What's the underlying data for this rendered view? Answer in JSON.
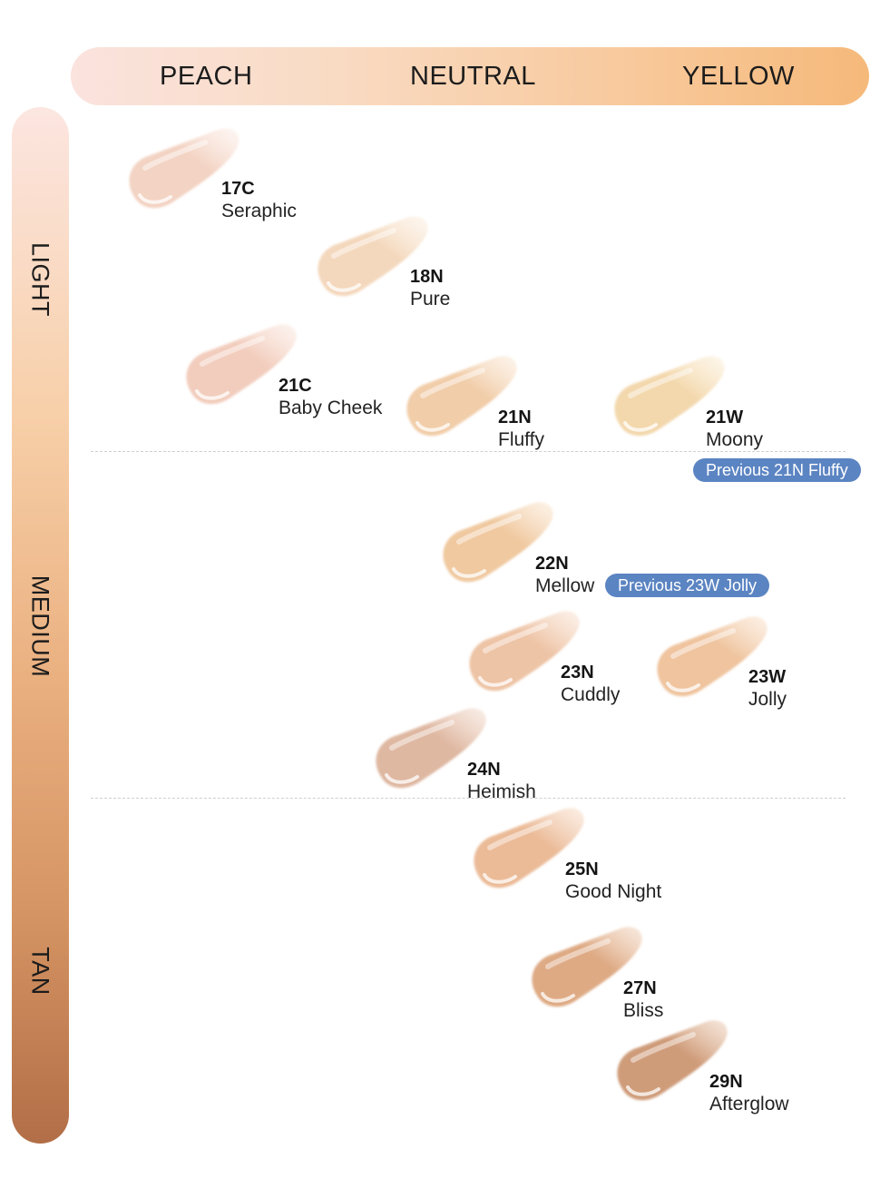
{
  "undertones": [
    "PEACH",
    "NEUTRAL",
    "YELLOW"
  ],
  "depths": [
    "LIGHT",
    "MEDIUM",
    "TAN"
  ],
  "shades": [
    {
      "code": "17C",
      "name": "Seraphic",
      "color": "#f3d3c3",
      "highlight": "#fbeae1"
    },
    {
      "code": "18N",
      "name": "Pure",
      "color": "#f4d8bd",
      "highlight": "#fbeddd"
    },
    {
      "code": "21C",
      "name": "Baby Cheek",
      "color": "#f2cdbd",
      "highlight": "#fae4da"
    },
    {
      "code": "21N",
      "name": "Fluffy",
      "color": "#f1cda9",
      "highlight": "#fae4cf"
    },
    {
      "code": "21W",
      "name": "Moony",
      "color": "#f3d8ad",
      "highlight": "#fbebd0"
    },
    {
      "code": "22N",
      "name": "Mellow",
      "color": "#f0c9a0",
      "highlight": "#f9e0c6"
    },
    {
      "code": "23N",
      "name": "Cuddly",
      "color": "#eec4a6",
      "highlight": "#f8ddca"
    },
    {
      "code": "23W",
      "name": "Jolly",
      "color": "#efc49e",
      "highlight": "#f9dcc3"
    },
    {
      "code": "24N",
      "name": "Heimish",
      "color": "#dfb8a2",
      "highlight": "#f0d5c5"
    },
    {
      "code": "25N",
      "name": "Good Night",
      "color": "#ebbb98",
      "highlight": "#f6d6bf"
    },
    {
      "code": "27N",
      "name": "Bliss",
      "color": "#deaa84",
      "highlight": "#efcbb0"
    },
    {
      "code": "29N",
      "name": "Afterglow",
      "color": "#cf9c7a",
      "highlight": "#e8c2a7"
    }
  ],
  "badges": [
    "Previous 21N Fluffy",
    "Previous 23W Jolly"
  ],
  "colors": {
    "badge": "#5b84c2"
  }
}
